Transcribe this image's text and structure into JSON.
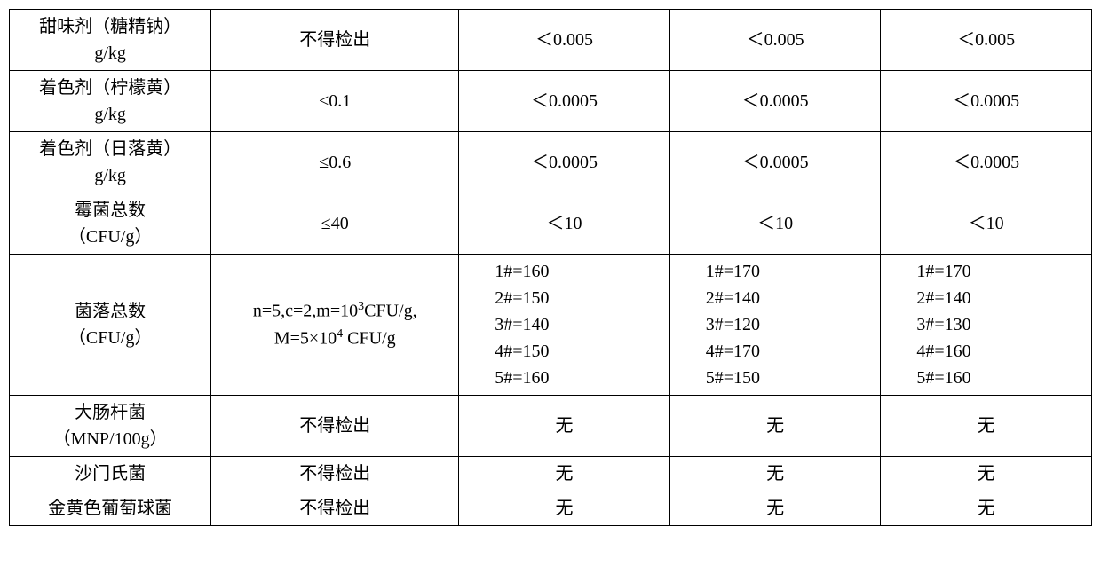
{
  "table": {
    "columns": {
      "label_width": 220,
      "spec_width": 270,
      "val_width": 230
    },
    "rows": [
      {
        "label_l1": "甜味剂（糖精钠）",
        "label_l2": "g/kg",
        "spec": "不得检出",
        "v1": "＜0.005",
        "v2": "＜0.005",
        "v3": "＜0.005"
      },
      {
        "label_l1": "着色剂（柠檬黄）",
        "label_l2": "g/kg",
        "spec": "≤0.1",
        "v1": "＜0.0005",
        "v2": "＜0.0005",
        "v3": "＜0.0005"
      },
      {
        "label_l1": "着色剂（日落黄）",
        "label_l2": "g/kg",
        "spec": "≤0.6",
        "v1": "＜0.0005",
        "v2": "＜0.0005",
        "v3": "＜0.0005"
      },
      {
        "label_l1": "霉菌总数",
        "label_l2": "（CFU/g）",
        "spec": "≤40",
        "v1": "＜10",
        "v2": "＜10",
        "v3": "＜10"
      },
      {
        "label_l1": "菌落总数",
        "label_l2": "（CFU/g）",
        "spec_html": "n=5,c=2,m=10<sup>3</sup>CFU/g,<br>M=5×10<sup>4</sup> CFU/g",
        "v1_lines": "1#=160\n2#=150\n3#=140\n4#=150\n5#=160",
        "v2_lines": "1#=170\n2#=140\n3#=120\n4#=170\n5#=150",
        "v3_lines": "1#=170\n2#=140\n3#=130\n4#=160\n5#=160"
      },
      {
        "label_l1": "大肠杆菌",
        "label_l2": "（MNP/100g）",
        "spec": "不得检出",
        "v1": "无",
        "v2": "无",
        "v3": "无"
      },
      {
        "label_single": "沙门氏菌",
        "spec": "不得检出",
        "v1": "无",
        "v2": "无",
        "v3": "无"
      },
      {
        "label_single": "金黄色葡萄球菌",
        "spec": "不得检出",
        "v1": "无",
        "v2": "无",
        "v3": "无"
      }
    ],
    "border_color": "#000000",
    "background_color": "#ffffff",
    "font_size": 20
  }
}
